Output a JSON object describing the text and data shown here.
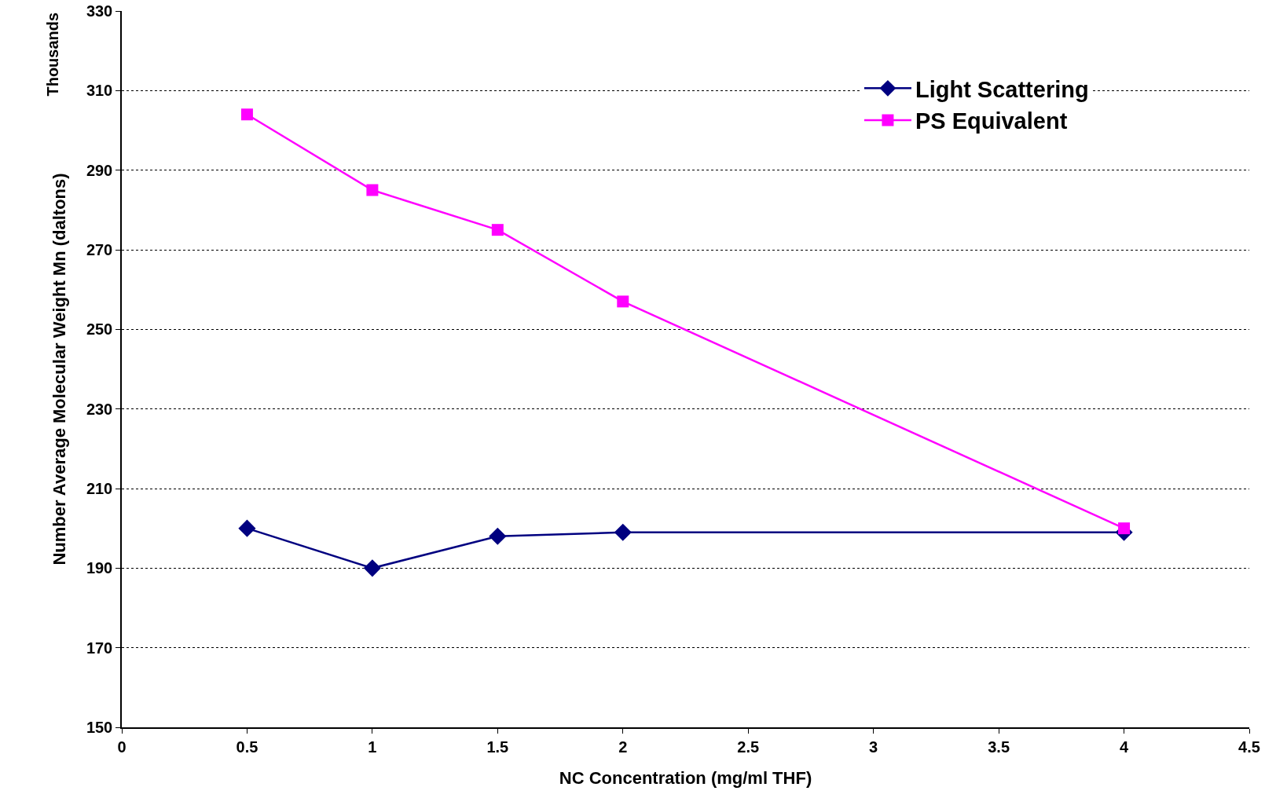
{
  "chart_data": {
    "type": "line",
    "xlabel": "NC Concentration (mg/ml THF)",
    "ylabel": "Number Average Molecular Weight Mn (daltons)",
    "annotations": [
      "Thousands"
    ],
    "x": [
      0.5,
      1,
      1.5,
      2,
      4
    ],
    "series": [
      {
        "name": "Light Scattering",
        "color": "#000080",
        "marker": "diamond",
        "values": [
          200,
          190,
          198,
          199,
          199
        ]
      },
      {
        "name": "PS Equivalent",
        "color": "#ff00ff",
        "marker": "square",
        "values": [
          304,
          285,
          275,
          257,
          200
        ]
      }
    ],
    "xlim": [
      0,
      4.5
    ],
    "xticks": [
      0,
      0.5,
      1,
      1.5,
      2,
      2.5,
      3,
      3.5,
      4,
      4.5
    ],
    "ylim": [
      150,
      330
    ],
    "yticks": [
      150,
      170,
      190,
      210,
      230,
      250,
      270,
      290,
      310,
      330
    ],
    "grid": "y",
    "legend": "top right",
    "line_style": "solid"
  }
}
